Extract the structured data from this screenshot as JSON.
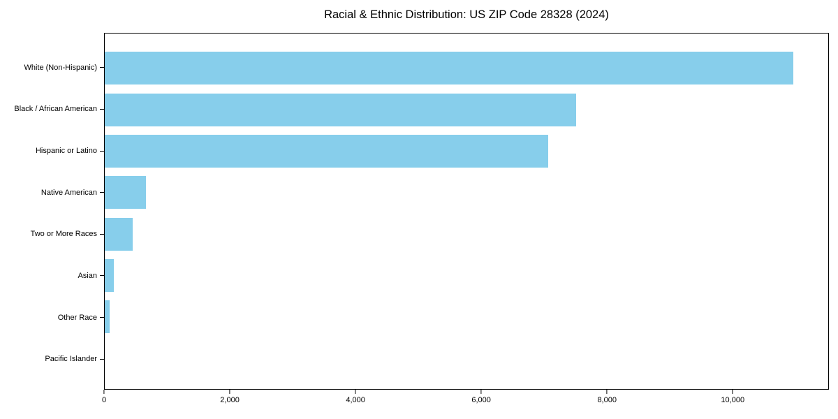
{
  "chart_data": {
    "type": "bar",
    "orientation": "horizontal",
    "title": "Racial & Ethnic Distribution: US ZIP Code 28328 (2024)",
    "categories": [
      "White (Non-Hispanic)",
      "Black / African American",
      "Hispanic or Latino",
      "Native American",
      "Two or More Races",
      "Asian",
      "Other Race",
      "Pacific Islander"
    ],
    "values": [
      10970,
      7510,
      7070,
      655,
      445,
      150,
      75,
      0
    ],
    "bar_color": "#87CEEB",
    "xlabel": "",
    "ylabel": "",
    "xlim": [
      0,
      11530
    ],
    "x_ticks": [
      0,
      2000,
      4000,
      6000,
      8000,
      10000
    ],
    "x_tick_labels": [
      "0",
      "2,000",
      "4,000",
      "6,000",
      "8,000",
      "10,000"
    ],
    "grid": false,
    "legend": null,
    "background_color": "#ffffff",
    "spine_color": "#000000",
    "text_color": "#000000"
  }
}
